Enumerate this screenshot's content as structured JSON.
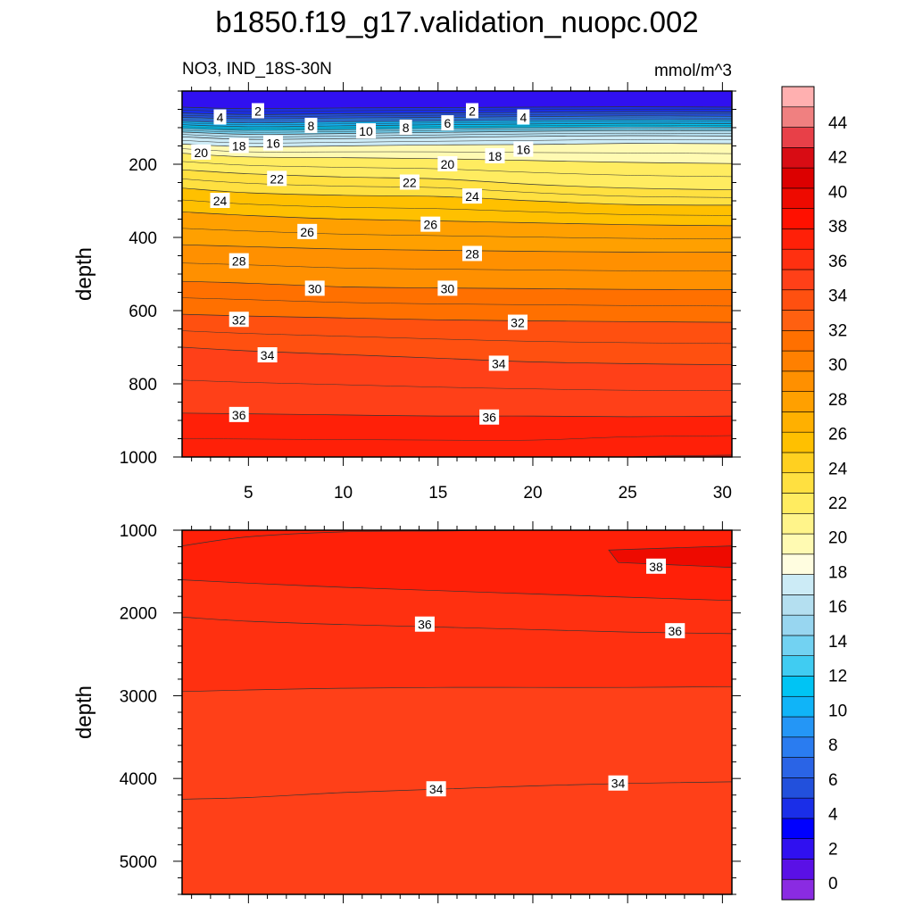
{
  "title": "b1850.f19_g17.validation_nuopc.002",
  "subtitle_left": "NO3, IND_18S-30N",
  "subtitle_right": "mmol/m^3",
  "colors": {
    "levels": [
      -2,
      0,
      2,
      4,
      6,
      8,
      10,
      12,
      14,
      16,
      18,
      20,
      22,
      24,
      26,
      28,
      30,
      32,
      34,
      36,
      38,
      40,
      42,
      44,
      46
    ],
    "fills": [
      "#8a2be2",
      "#5a10e6",
      "#3010f0",
      "#0000ff",
      "#1a2ee8",
      "#2250dc",
      "#2a64e6",
      "#2a7cf0",
      "#2496f6",
      "#10b4f8",
      "#00c4f4",
      "#40ccf2",
      "#72d2f2",
      "#98d6f0",
      "#b4dff0",
      "#ccebf6",
      "#fffde0",
      "#fffab2",
      "#fff48a",
      "#ffec60",
      "#ffe040",
      "#ffd020",
      "#ffc000",
      "#ffb000",
      "#ffa000",
      "#ff9000",
      "#ff8000",
      "#ff7000",
      "#ff6010",
      "#ff5010",
      "#ff4018",
      "#ff3010",
      "#ff2008",
      "#ff1000",
      "#ee0a00",
      "#dc0000",
      "#d80c14",
      "#e84048",
      "#f08080",
      "#ffb0b0"
    ],
    "isoline": "#333333"
  },
  "chart_data": [
    {
      "type": "contour",
      "panel": "upper",
      "xlabel": "",
      "ylabel": "depth",
      "xlim": [
        1.5,
        30.5
      ],
      "ylim": [
        1000,
        0
      ],
      "xticks": [
        5,
        10,
        15,
        20,
        25,
        30
      ],
      "yticks": [
        200,
        400,
        600,
        800,
        1000
      ],
      "contour_lines": [
        {
          "value": 2,
          "depth": [
            44,
            48,
            46,
            45,
            44,
            43,
            44
          ]
        },
        {
          "value": 4,
          "depth": [
            60,
            64,
            62,
            60,
            58,
            56,
            57
          ]
        },
        {
          "value": 6,
          "depth": [
            72,
            76,
            74,
            72,
            70,
            68,
            69
          ]
        },
        {
          "value": 8,
          "depth": [
            82,
            87,
            84,
            82,
            80,
            78,
            79
          ]
        },
        {
          "value": 10,
          "depth": [
            92,
            97,
            95,
            92,
            90,
            88,
            89
          ]
        },
        {
          "value": 12,
          "depth": [
            102,
            107,
            105,
            102,
            100,
            98,
            99
          ]
        },
        {
          "value": 14,
          "depth": [
            112,
            118,
            116,
            113,
            110,
            108,
            109
          ]
        },
        {
          "value": 16,
          "depth": [
            125,
            132,
            130,
            127,
            124,
            122,
            123
          ]
        },
        {
          "value": 18,
          "depth": [
            145,
            152,
            150,
            147,
            146,
            143,
            144
          ]
        },
        {
          "value": 20,
          "depth": [
            170,
            180,
            182,
            185,
            190,
            195,
            198
          ]
        },
        {
          "value": 22,
          "depth": [
            215,
            226,
            235,
            240,
            255,
            265,
            270
          ]
        },
        {
          "value": 24,
          "depth": [
            265,
            278,
            285,
            288,
            300,
            310,
            312
          ]
        },
        {
          "value": 26,
          "depth": [
            330,
            340,
            350,
            355,
            360,
            365,
            368
          ]
        },
        {
          "value": 28,
          "depth": [
            420,
            425,
            432,
            435,
            438,
            440,
            440
          ]
        },
        {
          "value": 30,
          "depth": [
            520,
            525,
            535,
            538,
            540,
            542,
            543
          ]
        },
        {
          "value": 32,
          "depth": [
            610,
            615,
            620,
            625,
            628,
            630,
            632
          ]
        },
        {
          "value": 34,
          "depth": [
            700,
            710,
            720,
            730,
            740,
            745,
            748
          ]
        },
        {
          "value": 36,
          "depth": [
            880,
            882,
            885,
            888,
            888,
            890,
            888
          ]
        },
        {
          "value": 38,
          "depth": [
            1020,
            1020,
            1020,
            1020,
            1020,
            1000,
            995
          ]
        }
      ],
      "line_x": [
        1.5,
        5,
        10,
        15,
        20,
        25,
        30.5
      ],
      "labels": [
        {
          "text": "2",
          "x": 5.5,
          "y": 55
        },
        {
          "text": "4",
          "x": 3.5,
          "y": 72
        },
        {
          "text": "8",
          "x": 8.3,
          "y": 95
        },
        {
          "text": "10",
          "x": 11.2,
          "y": 110
        },
        {
          "text": "8",
          "x": 13.3,
          "y": 100
        },
        {
          "text": "6",
          "x": 15.5,
          "y": 88
        },
        {
          "text": "2",
          "x": 16.8,
          "y": 55
        },
        {
          "text": "4",
          "x": 19.5,
          "y": 72
        },
        {
          "text": "20",
          "x": 2.5,
          "y": 168
        },
        {
          "text": "18",
          "x": 4.5,
          "y": 150
        },
        {
          "text": "16",
          "x": 6.3,
          "y": 143
        },
        {
          "text": "16",
          "x": 19.5,
          "y": 160
        },
        {
          "text": "18",
          "x": 18,
          "y": 178
        },
        {
          "text": "20",
          "x": 15.5,
          "y": 200
        },
        {
          "text": "22",
          "x": 6.5,
          "y": 240
        },
        {
          "text": "22",
          "x": 13.5,
          "y": 250
        },
        {
          "text": "24",
          "x": 3.5,
          "y": 300
        },
        {
          "text": "24",
          "x": 16.8,
          "y": 288
        },
        {
          "text": "26",
          "x": 8.1,
          "y": 385
        },
        {
          "text": "26",
          "x": 14.6,
          "y": 365
        },
        {
          "text": "28",
          "x": 4.5,
          "y": 465
        },
        {
          "text": "28",
          "x": 16.8,
          "y": 445
        },
        {
          "text": "30",
          "x": 8.5,
          "y": 540
        },
        {
          "text": "30",
          "x": 15.5,
          "y": 540
        },
        {
          "text": "32",
          "x": 4.5,
          "y": 625
        },
        {
          "text": "32",
          "x": 19.2,
          "y": 633
        },
        {
          "text": "34",
          "x": 6,
          "y": 722
        },
        {
          "text": "34",
          "x": 18.2,
          "y": 745
        },
        {
          "text": "36",
          "x": 4.5,
          "y": 885
        },
        {
          "text": "36",
          "x": 17.7,
          "y": 892
        }
      ]
    },
    {
      "type": "contour",
      "panel": "lower",
      "xlabel": "",
      "ylabel": "depth",
      "xlim": [
        1.5,
        30.5
      ],
      "ylim": [
        5400,
        1000
      ],
      "xticks": [
        5,
        10,
        15,
        20,
        25,
        30
      ],
      "yticks": [
        1000,
        2000,
        3000,
        4000,
        5000
      ],
      "contour_lines": [
        {
          "value": 38,
          "depth": [
            1190,
            1080,
            1020,
            1010,
            1000,
            1000,
            1000
          ]
        },
        {
          "value": 36.5,
          "depth": [
            1600,
            1640,
            1690,
            1730,
            1770,
            1810,
            1850
          ]
        },
        {
          "value": 36,
          "depth": [
            2050,
            2100,
            2140,
            2170,
            2200,
            2230,
            2250
          ]
        },
        {
          "value": 35,
          "depth": [
            2950,
            2930,
            2910,
            2900,
            2900,
            2900,
            2890
          ]
        },
        {
          "value": 34,
          "depth": [
            4250,
            4230,
            4170,
            4130,
            4090,
            4060,
            4040
          ]
        }
      ],
      "line_x": [
        1.5,
        5,
        10,
        15,
        20,
        25,
        30.5
      ],
      "patch_38": {
        "value": 38.5,
        "x": [
          24,
          30.5,
          30.5,
          24.5
        ],
        "y": [
          1240,
          1190,
          1450,
          1390
        ]
      },
      "labels": [
        {
          "text": "38",
          "x": 26.5,
          "y": 1440
        },
        {
          "text": "36",
          "x": 14.3,
          "y": 2140
        },
        {
          "text": "36",
          "x": 27.5,
          "y": 2220
        },
        {
          "text": "34",
          "x": 14.9,
          "y": 4130
        },
        {
          "text": "34",
          "x": 24.5,
          "y": 4060
        }
      ]
    }
  ],
  "colorbar": {
    "labels": [
      "0",
      "2",
      "4",
      "6",
      "8",
      "10",
      "12",
      "14",
      "16",
      "18",
      "20",
      "22",
      "24",
      "26",
      "28",
      "30",
      "32",
      "34",
      "36",
      "38",
      "40",
      "42",
      "44"
    ]
  }
}
